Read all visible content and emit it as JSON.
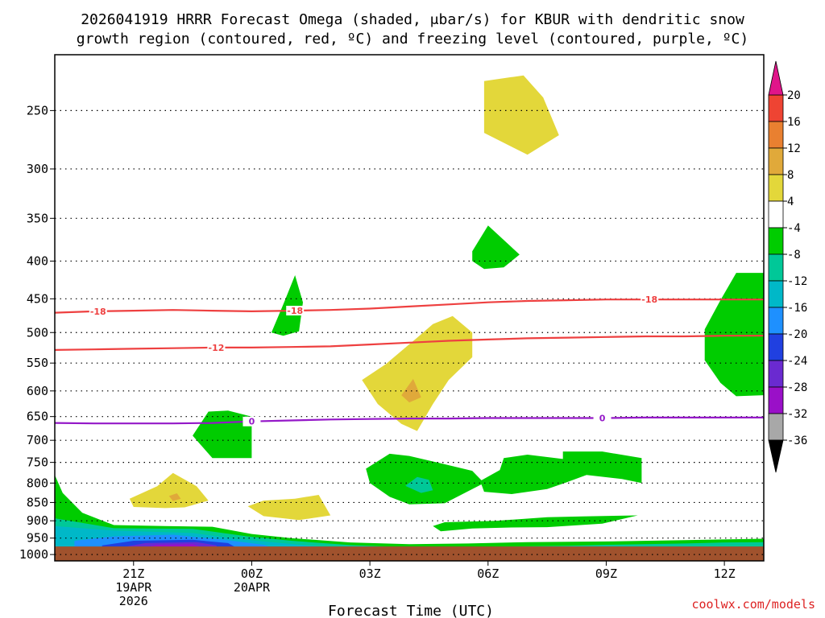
{
  "chart_data": {
    "type": "heatmap",
    "title_line1": "2026041919 HRRR Forecast Omega (shaded, μbar/s) for KBUR with dendritic snow",
    "title_line2": "growth region (contoured, red, ºC) and freezing level (contoured, purple, ºC)",
    "xlabel": "Forecast Time (UTC)",
    "credit": "coolwx.com/models",
    "x_ticks": [
      {
        "hour": 21,
        "lines": [
          "21Z",
          "19APR",
          "2026"
        ]
      },
      {
        "hour": 24,
        "lines": [
          "00Z",
          "20APR"
        ]
      },
      {
        "hour": 27,
        "lines": [
          "03Z"
        ]
      },
      {
        "hour": 30,
        "lines": [
          "06Z"
        ]
      },
      {
        "hour": 33,
        "lines": [
          "09Z"
        ]
      },
      {
        "hour": 36,
        "lines": [
          "12Z"
        ]
      }
    ],
    "xlim": [
      19,
      37
    ],
    "y_ticks": [
      "250",
      "300",
      "350",
      "400",
      "450",
      "500",
      "550",
      "600",
      "650",
      "700",
      "750",
      "800",
      "850",
      "900",
      "950",
      "1000"
    ],
    "y_axis": "pressure (hPa), log scale, inverted",
    "ylim": [
      200,
      1020
    ],
    "surface_fill_color": "#a0522d",
    "colorbar": {
      "tick_labels": [
        "20",
        "16",
        "12",
        "8",
        "4",
        "-4",
        "-8",
        "-12",
        "-16",
        "-20",
        "-24",
        "-28",
        "-32",
        "-36"
      ],
      "bands": [
        {
          "range": "16 to 20",
          "color": "#ee4433"
        },
        {
          "range": "12 to 16",
          "color": "#e98030"
        },
        {
          "range": "8 to 12",
          "color": "#e0a93a"
        },
        {
          "range": "4 to 8",
          "color": "#e3d73a"
        },
        {
          "range": "-4 to 4",
          "color": "#ffffff"
        },
        {
          "range": "-8 to -4",
          "color": "#00cc00"
        },
        {
          "range": "-12 to -8",
          "color": "#00c898"
        },
        {
          "range": "-16 to -12",
          "color": "#00b8c8"
        },
        {
          "range": "-20 to -16",
          "color": "#1e90ff"
        },
        {
          "range": "-24 to -20",
          "color": "#2040e0"
        },
        {
          "range": "-28 to -24",
          "color": "#6a2ad0"
        },
        {
          "range": "-32 to -28",
          "color": "#9a10c8"
        },
        {
          "range": "-36 to -32",
          "color": "#a8a8a8"
        }
      ],
      "top_extend_color": "#e0158a",
      "bottom_extend_color": "#000000"
    },
    "contours": [
      {
        "name": "-18",
        "color": "#ee4040",
        "label": "-18",
        "points": [
          [
            19.0,
            470
          ],
          [
            20,
            468
          ],
          [
            21,
            467
          ],
          [
            22,
            466
          ],
          [
            23,
            467
          ],
          [
            24,
            468
          ],
          [
            25,
            467
          ],
          [
            26,
            466
          ],
          [
            27,
            464
          ],
          [
            28,
            461
          ],
          [
            29,
            458
          ],
          [
            30,
            455
          ],
          [
            31,
            453
          ],
          [
            32,
            452
          ],
          [
            33,
            451
          ],
          [
            34,
            451
          ],
          [
            35,
            451
          ],
          [
            36,
            451
          ],
          [
            37,
            451
          ]
        ]
      },
      {
        "name": "-12",
        "color": "#ee4040",
        "label": "-12",
        "points": [
          [
            19.0,
            528
          ],
          [
            20,
            527
          ],
          [
            21,
            526
          ],
          [
            22,
            525
          ],
          [
            23,
            524
          ],
          [
            24,
            524
          ],
          [
            25,
            523
          ],
          [
            26,
            522
          ],
          [
            27,
            519
          ],
          [
            28,
            516
          ],
          [
            29,
            513
          ],
          [
            30,
            511
          ],
          [
            31,
            509
          ],
          [
            32,
            508
          ],
          [
            33,
            507
          ],
          [
            34,
            506
          ],
          [
            35,
            506
          ],
          [
            36,
            505
          ],
          [
            37,
            505
          ]
        ]
      },
      {
        "name": "0",
        "color": "#9418c8",
        "label": "0",
        "points": [
          [
            19.0,
            663
          ],
          [
            20,
            664
          ],
          [
            21,
            664
          ],
          [
            22,
            664
          ],
          [
            23,
            663
          ],
          [
            24,
            660
          ],
          [
            25,
            658
          ],
          [
            26,
            656
          ],
          [
            27,
            655
          ],
          [
            28,
            654
          ],
          [
            29,
            654
          ],
          [
            30,
            653
          ],
          [
            31,
            653
          ],
          [
            32,
            653
          ],
          [
            33,
            653
          ],
          [
            34,
            652
          ],
          [
            35,
            652
          ],
          [
            36,
            652
          ],
          [
            37,
            652
          ]
        ]
      }
    ],
    "omega_regions": [
      {
        "value": "4 to 8",
        "color": "#e3d73a",
        "points": [
          [
            26.8,
            580
          ],
          [
            27.4,
            552
          ],
          [
            28.2,
            508
          ],
          [
            28.6,
            487
          ],
          [
            29.1,
            475
          ],
          [
            29.6,
            500
          ],
          [
            29.6,
            540
          ],
          [
            29.0,
            580
          ],
          [
            28.6,
            625
          ],
          [
            28.2,
            680
          ],
          [
            27.8,
            665
          ],
          [
            27.2,
            625
          ]
        ]
      },
      {
        "value": "8 to 12",
        "color": "#e0a93a",
        "points": [
          [
            28.1,
            578
          ],
          [
            28.3,
            612
          ],
          [
            28.0,
            622
          ],
          [
            27.8,
            608
          ]
        ]
      },
      {
        "value": "4 to 8",
        "color": "#e3d73a",
        "points": [
          [
            29.9,
            228
          ],
          [
            30.9,
            224
          ],
          [
            31.4,
            240
          ],
          [
            31.8,
            270
          ],
          [
            31.0,
            287
          ],
          [
            29.9,
            268
          ]
        ]
      },
      {
        "value": "-8 to -4",
        "color": "#00cc00",
        "points": [
          [
            29.6,
            388
          ],
          [
            30.0,
            358
          ],
          [
            30.8,
            392
          ],
          [
            30.4,
            408
          ],
          [
            29.9,
            410
          ],
          [
            29.6,
            400
          ]
        ]
      },
      {
        "value": "-8 to -4",
        "color": "#00cc00",
        "points": [
          [
            24.5,
            500
          ],
          [
            24.8,
            458
          ],
          [
            25.1,
            418
          ],
          [
            25.3,
            455
          ],
          [
            25.2,
            498
          ],
          [
            24.8,
            505
          ]
        ]
      },
      {
        "value": "-8 to -4",
        "color": "#00cc00",
        "points": [
          [
            35.5,
            495
          ],
          [
            35.9,
            452
          ],
          [
            36.3,
            415
          ],
          [
            37,
            415
          ],
          [
            37,
            608
          ],
          [
            36.3,
            610
          ],
          [
            35.9,
            585
          ],
          [
            35.5,
            545
          ]
        ]
      },
      {
        "value": "-8 to -4",
        "color": "#00cc00",
        "points": [
          [
            22.5,
            690
          ],
          [
            22.9,
            640
          ],
          [
            23.4,
            638
          ],
          [
            24.0,
            650
          ],
          [
            24.0,
            740
          ],
          [
            23.4,
            740
          ],
          [
            23.0,
            740
          ]
        ]
      },
      {
        "value": "-8 to -4",
        "color": "#00cc00",
        "points": [
          [
            26.9,
            765
          ],
          [
            27.5,
            730
          ],
          [
            28.0,
            735
          ],
          [
            28.8,
            752
          ],
          [
            29.6,
            770
          ],
          [
            29.9,
            800
          ],
          [
            28.9,
            852
          ],
          [
            28.0,
            855
          ],
          [
            27.5,
            835
          ],
          [
            27.0,
            800
          ]
        ]
      },
      {
        "value": "-12 to -8",
        "color": "#00c898",
        "points": [
          [
            27.9,
            807
          ],
          [
            28.2,
            785
          ],
          [
            28.5,
            792
          ],
          [
            28.6,
            818
          ],
          [
            28.3,
            825
          ]
        ]
      },
      {
        "value": "-8 to -4",
        "color": "#00cc00",
        "points": [
          [
            29.8,
            795
          ],
          [
            30.3,
            768
          ],
          [
            30.4,
            740
          ],
          [
            31.0,
            732
          ],
          [
            31.9,
            742
          ],
          [
            31.9,
            725
          ],
          [
            32.9,
            725
          ],
          [
            33.9,
            740
          ],
          [
            33.9,
            800
          ],
          [
            33.4,
            790
          ],
          [
            32.5,
            780
          ],
          [
            32.0,
            798
          ],
          [
            31.5,
            815
          ],
          [
            30.6,
            828
          ],
          [
            29.9,
            822
          ]
        ]
      },
      {
        "value": "-8 to -4",
        "color": "#00cc00",
        "points": [
          [
            28.6,
            915
          ],
          [
            28.9,
            904
          ],
          [
            30.2,
            900
          ],
          [
            31.5,
            890
          ],
          [
            32.4,
            888
          ],
          [
            33.8,
            885
          ],
          [
            32.9,
            908
          ],
          [
            31.5,
            918
          ],
          [
            30.6,
            919
          ],
          [
            29.6,
            922
          ],
          [
            28.8,
            930
          ]
        ]
      },
      {
        "value": "4 to 8",
        "color": "#e3d73a",
        "points": [
          [
            20.9,
            840
          ],
          [
            21.6,
            808
          ],
          [
            22.0,
            775
          ],
          [
            22.6,
            808
          ],
          [
            22.9,
            845
          ],
          [
            22.3,
            863
          ],
          [
            21.8,
            865
          ],
          [
            21.0,
            862
          ]
        ]
      },
      {
        "value": "8 to 12",
        "color": "#e0a93a",
        "points": [
          [
            21.9,
            833
          ],
          [
            22.1,
            826
          ],
          [
            22.2,
            840
          ],
          [
            22.0,
            846
          ]
        ]
      },
      {
        "value": "4 to 8",
        "color": "#e3d73a",
        "points": [
          [
            23.9,
            860
          ],
          [
            24.3,
            845
          ],
          [
            25.1,
            840
          ],
          [
            25.7,
            830
          ],
          [
            26.0,
            885
          ],
          [
            25.2,
            898
          ],
          [
            24.3,
            887
          ]
        ]
      },
      {
        "value": "-8 to -4",
        "color": "#00cc00",
        "points": [
          [
            19,
            780
          ],
          [
            19.2,
            825
          ],
          [
            19.7,
            878
          ],
          [
            20.5,
            912
          ],
          [
            21.8,
            915
          ],
          [
            23.0,
            917
          ],
          [
            24.0,
            938
          ],
          [
            25.0,
            950
          ],
          [
            26.5,
            963
          ],
          [
            28,
            968
          ],
          [
            29.5,
            966
          ],
          [
            31,
            962
          ],
          [
            33,
            960
          ],
          [
            35,
            956
          ],
          [
            37,
            952
          ],
          [
            37,
            1020
          ],
          [
            19,
            1020
          ]
        ]
      },
      {
        "value": "-12 to -8",
        "color": "#00c898",
        "points": [
          [
            19,
            893
          ],
          [
            20.5,
            921
          ],
          [
            22.5,
            923
          ],
          [
            23.9,
            945
          ],
          [
            25.0,
            958
          ],
          [
            26.5,
            971
          ],
          [
            28,
            978
          ],
          [
            30,
            976
          ],
          [
            32,
            973
          ],
          [
            33,
            970
          ],
          [
            35,
            966
          ],
          [
            36,
            963
          ],
          [
            37,
            962
          ],
          [
            37,
            1020
          ],
          [
            19,
            1020
          ]
        ]
      },
      {
        "value": "-16 to -12",
        "color": "#00b8c8",
        "points": [
          [
            19,
            915
          ],
          [
            20.5,
            928
          ],
          [
            22.5,
            935
          ],
          [
            23.6,
            952
          ],
          [
            24.5,
            962
          ],
          [
            25.5,
            973
          ],
          [
            26.5,
            980
          ],
          [
            27,
            1020
          ],
          [
            19,
            1020
          ]
        ]
      },
      {
        "value": "-20 to -16",
        "color": "#1e90ff",
        "points": [
          [
            19.5,
            958
          ],
          [
            20.5,
            945
          ],
          [
            22,
            940
          ],
          [
            23.3,
            955
          ],
          [
            24.3,
            970
          ],
          [
            24.8,
            990
          ],
          [
            24.6,
            1020
          ],
          [
            19.5,
            1020
          ]
        ]
      },
      {
        "value": "-24 to -20",
        "color": "#2040e0",
        "points": [
          [
            20.2,
            972
          ],
          [
            21.0,
            958
          ],
          [
            22.5,
            955
          ],
          [
            23.4,
            965
          ],
          [
            23.7,
            985
          ],
          [
            23.5,
            1020
          ],
          [
            20.2,
            1020
          ]
        ]
      },
      {
        "value": "-28 to -24",
        "color": "#6a2ad0",
        "points": [
          [
            20.6,
            980
          ],
          [
            21.3,
            965
          ],
          [
            22.6,
            962
          ],
          [
            23.1,
            972
          ],
          [
            23.3,
            1020
          ],
          [
            20.6,
            1020
          ]
        ]
      },
      {
        "value": "-32 to -28",
        "color": "#9a10c8",
        "points": [
          [
            21.0,
            985
          ],
          [
            21.6,
            970
          ],
          [
            22.5,
            968
          ],
          [
            22.8,
            980
          ],
          [
            22.8,
            1020
          ],
          [
            21.0,
            1020
          ]
        ]
      }
    ],
    "contour_label_positions": [
      {
        "contour": "-18",
        "hours": [
          20.1,
          25.1,
          34.1
        ]
      },
      {
        "contour": "-12",
        "hours": [
          23.1
        ]
      },
      {
        "contour": "0",
        "hours": [
          24.0,
          32.9
        ]
      }
    ]
  }
}
